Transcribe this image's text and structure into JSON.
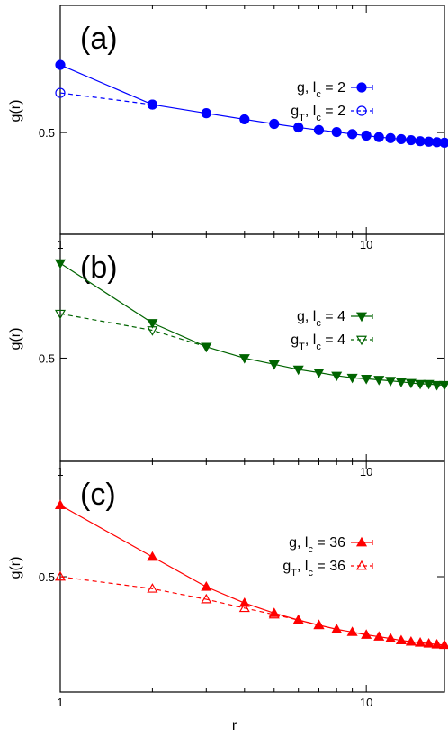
{
  "chart_data": [
    {
      "type": "scatter",
      "panel_label": "(a)",
      "ylabel": "g(r)",
      "xlabel": "",
      "xscale": "log",
      "xlim": [
        1,
        18
      ],
      "ylim": [
        0.3,
        0.75
      ],
      "xticks": [
        1,
        10
      ],
      "xtick_labels": [
        "1",
        "10"
      ],
      "yticks": [
        0.5
      ],
      "ytick_labels": [
        "0.5"
      ],
      "legend_position": "right",
      "color": "#0000ff",
      "series": [
        {
          "name_main": "g, l",
          "name_sub": "c",
          "name_tail": " = 2",
          "marker": "circle-filled",
          "linestyle": "solid",
          "x": [
            1,
            2,
            3,
            4,
            5,
            6,
            7,
            8,
            9,
            10,
            11,
            12,
            13,
            14,
            15,
            16,
            17,
            18
          ],
          "y": [
            0.633,
            0.555,
            0.538,
            0.526,
            0.517,
            0.51,
            0.505,
            0.501,
            0.497,
            0.494,
            0.491,
            0.489,
            0.487,
            0.485,
            0.483,
            0.482,
            0.481,
            0.48
          ]
        },
        {
          "name_main": "g",
          "name_sub": "T",
          "name_tail": ", l",
          "name_sub2": "c",
          "name_tail2": " = 2",
          "marker": "circle-open",
          "linestyle": "dashed",
          "x": [
            1,
            2
          ],
          "y": [
            0.578,
            0.555
          ]
        }
      ]
    },
    {
      "type": "scatter",
      "panel_label": "(b)",
      "ylabel": "g(r)",
      "xlabel": "",
      "xscale": "log",
      "xlim": [
        1,
        18
      ],
      "ylim": [
        0.4,
        0.62
      ],
      "xticks": [
        1,
        10
      ],
      "xtick_labels": [
        "1",
        "10"
      ],
      "yticks": [
        0.5
      ],
      "ytick_labels": [
        "0.5"
      ],
      "legend_position": "right",
      "color": "#006400",
      "series": [
        {
          "name_main": "g, l",
          "name_sub": "c",
          "name_tail": " = 4",
          "marker": "triangle-down-filled",
          "linestyle": "solid",
          "x": [
            1,
            2,
            3,
            4,
            5,
            6,
            7,
            8,
            9,
            10,
            11,
            12,
            13,
            14,
            15,
            16,
            17,
            18
          ],
          "y": [
            0.592,
            0.534,
            0.511,
            0.5,
            0.494,
            0.489,
            0.486,
            0.483,
            0.481,
            0.48,
            0.479,
            0.478,
            0.477,
            0.476,
            0.475,
            0.475,
            0.474,
            0.474
          ]
        },
        {
          "name_main": "g",
          "name_sub": "T",
          "name_tail": ", l",
          "name_sub2": "c",
          "name_tail2": " = 4",
          "marker": "triangle-down-open",
          "linestyle": "dashed",
          "x": [
            1,
            2,
            3
          ],
          "y": [
            0.543,
            0.527,
            0.511
          ]
        }
      ]
    },
    {
      "type": "scatter",
      "panel_label": "(c)",
      "ylabel": "g(r)",
      "xlabel": "r",
      "xscale": "log",
      "xlim": [
        1,
        18
      ],
      "ylim": [
        0.25,
        0.75
      ],
      "xticks": [
        1,
        10
      ],
      "xtick_labels": [
        "1",
        "10"
      ],
      "yticks": [
        0.5
      ],
      "ytick_labels": [
        "0.5"
      ],
      "legend_position": "right",
      "color": "#ff0000",
      "series": [
        {
          "name_main": "g, l",
          "name_sub": "c",
          "name_tail": " = 36",
          "marker": "triangle-up-filled",
          "linestyle": "solid",
          "x": [
            1,
            2,
            3,
            4,
            5,
            6,
            7,
            8,
            9,
            10,
            11,
            12,
            13,
            14,
            15,
            16,
            17,
            18
          ],
          "y": [
            0.655,
            0.543,
            0.478,
            0.443,
            0.421,
            0.406,
            0.395,
            0.386,
            0.38,
            0.374,
            0.37,
            0.366,
            0.362,
            0.359,
            0.357,
            0.355,
            0.353,
            0.352
          ]
        },
        {
          "name_main": "g",
          "name_sub": "T",
          "name_tail": ", l",
          "name_sub2": "c",
          "name_tail2": " = 36",
          "marker": "triangle-up-open",
          "linestyle": "dashed",
          "x": [
            1,
            2,
            3,
            4,
            5,
            6,
            7
          ],
          "y": [
            0.5,
            0.474,
            0.451,
            0.432,
            0.418,
            0.406,
            0.395
          ]
        }
      ]
    }
  ]
}
